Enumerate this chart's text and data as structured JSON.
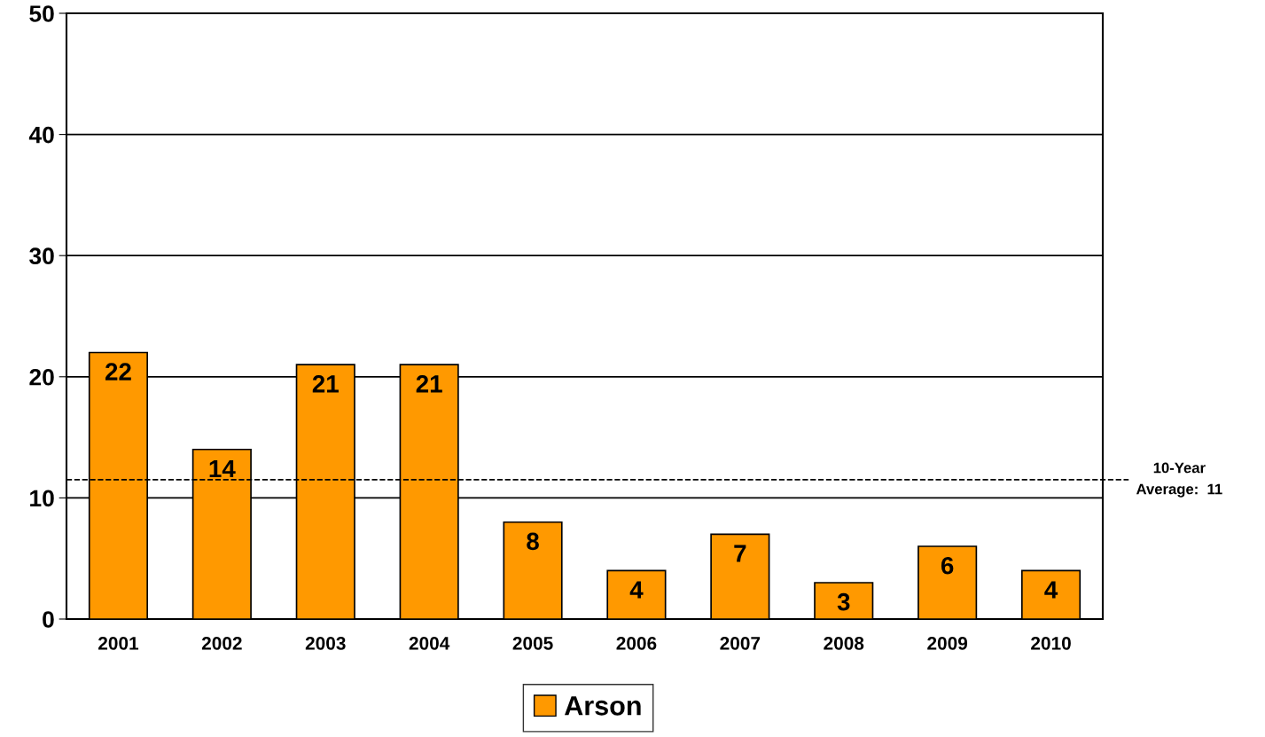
{
  "chart_data": {
    "type": "bar",
    "categories": [
      "2001",
      "2002",
      "2003",
      "2004",
      "2005",
      "2006",
      "2007",
      "2008",
      "2009",
      "2010"
    ],
    "series": [
      {
        "name": "Arson",
        "color": "#ff9900",
        "values": [
          22,
          14,
          21,
          21,
          8,
          4,
          7,
          3,
          6,
          4
        ]
      }
    ],
    "ylim": [
      0,
      50
    ],
    "yticks": [
      0,
      10,
      20,
      30,
      40,
      50
    ],
    "grid": "y",
    "legend": "bottom",
    "data_labels": true,
    "ref_lines": [
      {
        "axis": "y",
        "value": 11.5,
        "label": "10-Year\nAverage:  11",
        "line_style": "dashed",
        "color": "#000000"
      }
    ]
  }
}
